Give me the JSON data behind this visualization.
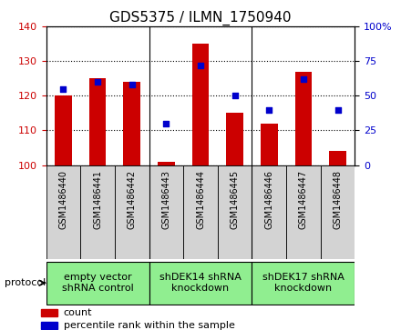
{
  "title": "GDS5375 / ILMN_1750940",
  "samples": [
    "GSM1486440",
    "GSM1486441",
    "GSM1486442",
    "GSM1486443",
    "GSM1486444",
    "GSM1486445",
    "GSM1486446",
    "GSM1486447",
    "GSM1486448"
  ],
  "counts": [
    120,
    125,
    124,
    101,
    135,
    115,
    112,
    127,
    104
  ],
  "percentiles": [
    55,
    60,
    58,
    30,
    72,
    50,
    40,
    62,
    40
  ],
  "ylim_left": [
    100,
    140
  ],
  "ylim_right": [
    0,
    100
  ],
  "yticks_left": [
    100,
    110,
    120,
    130,
    140
  ],
  "yticks_right": [
    0,
    25,
    50,
    75,
    100
  ],
  "bar_color": "#cc0000",
  "dot_color": "#0000cc",
  "bar_width": 0.5,
  "groups": [
    {
      "label": "empty vector\nshRNA control",
      "start": 0,
      "end": 3,
      "color": "#90ee90"
    },
    {
      "label": "shDEK14 shRNA\nknockdown",
      "start": 3,
      "end": 6,
      "color": "#90ee90"
    },
    {
      "label": "shDEK17 shRNA\nknockdown",
      "start": 6,
      "end": 9,
      "color": "#90ee90"
    }
  ],
  "protocol_label": "protocol",
  "legend_count": "count",
  "legend_pct": "percentile rank within the sample",
  "tick_bg_color": "#d3d3d3",
  "title_fontsize": 11,
  "tick_fontsize": 8,
  "group_label_fontsize": 8,
  "sample_fontsize": 7
}
